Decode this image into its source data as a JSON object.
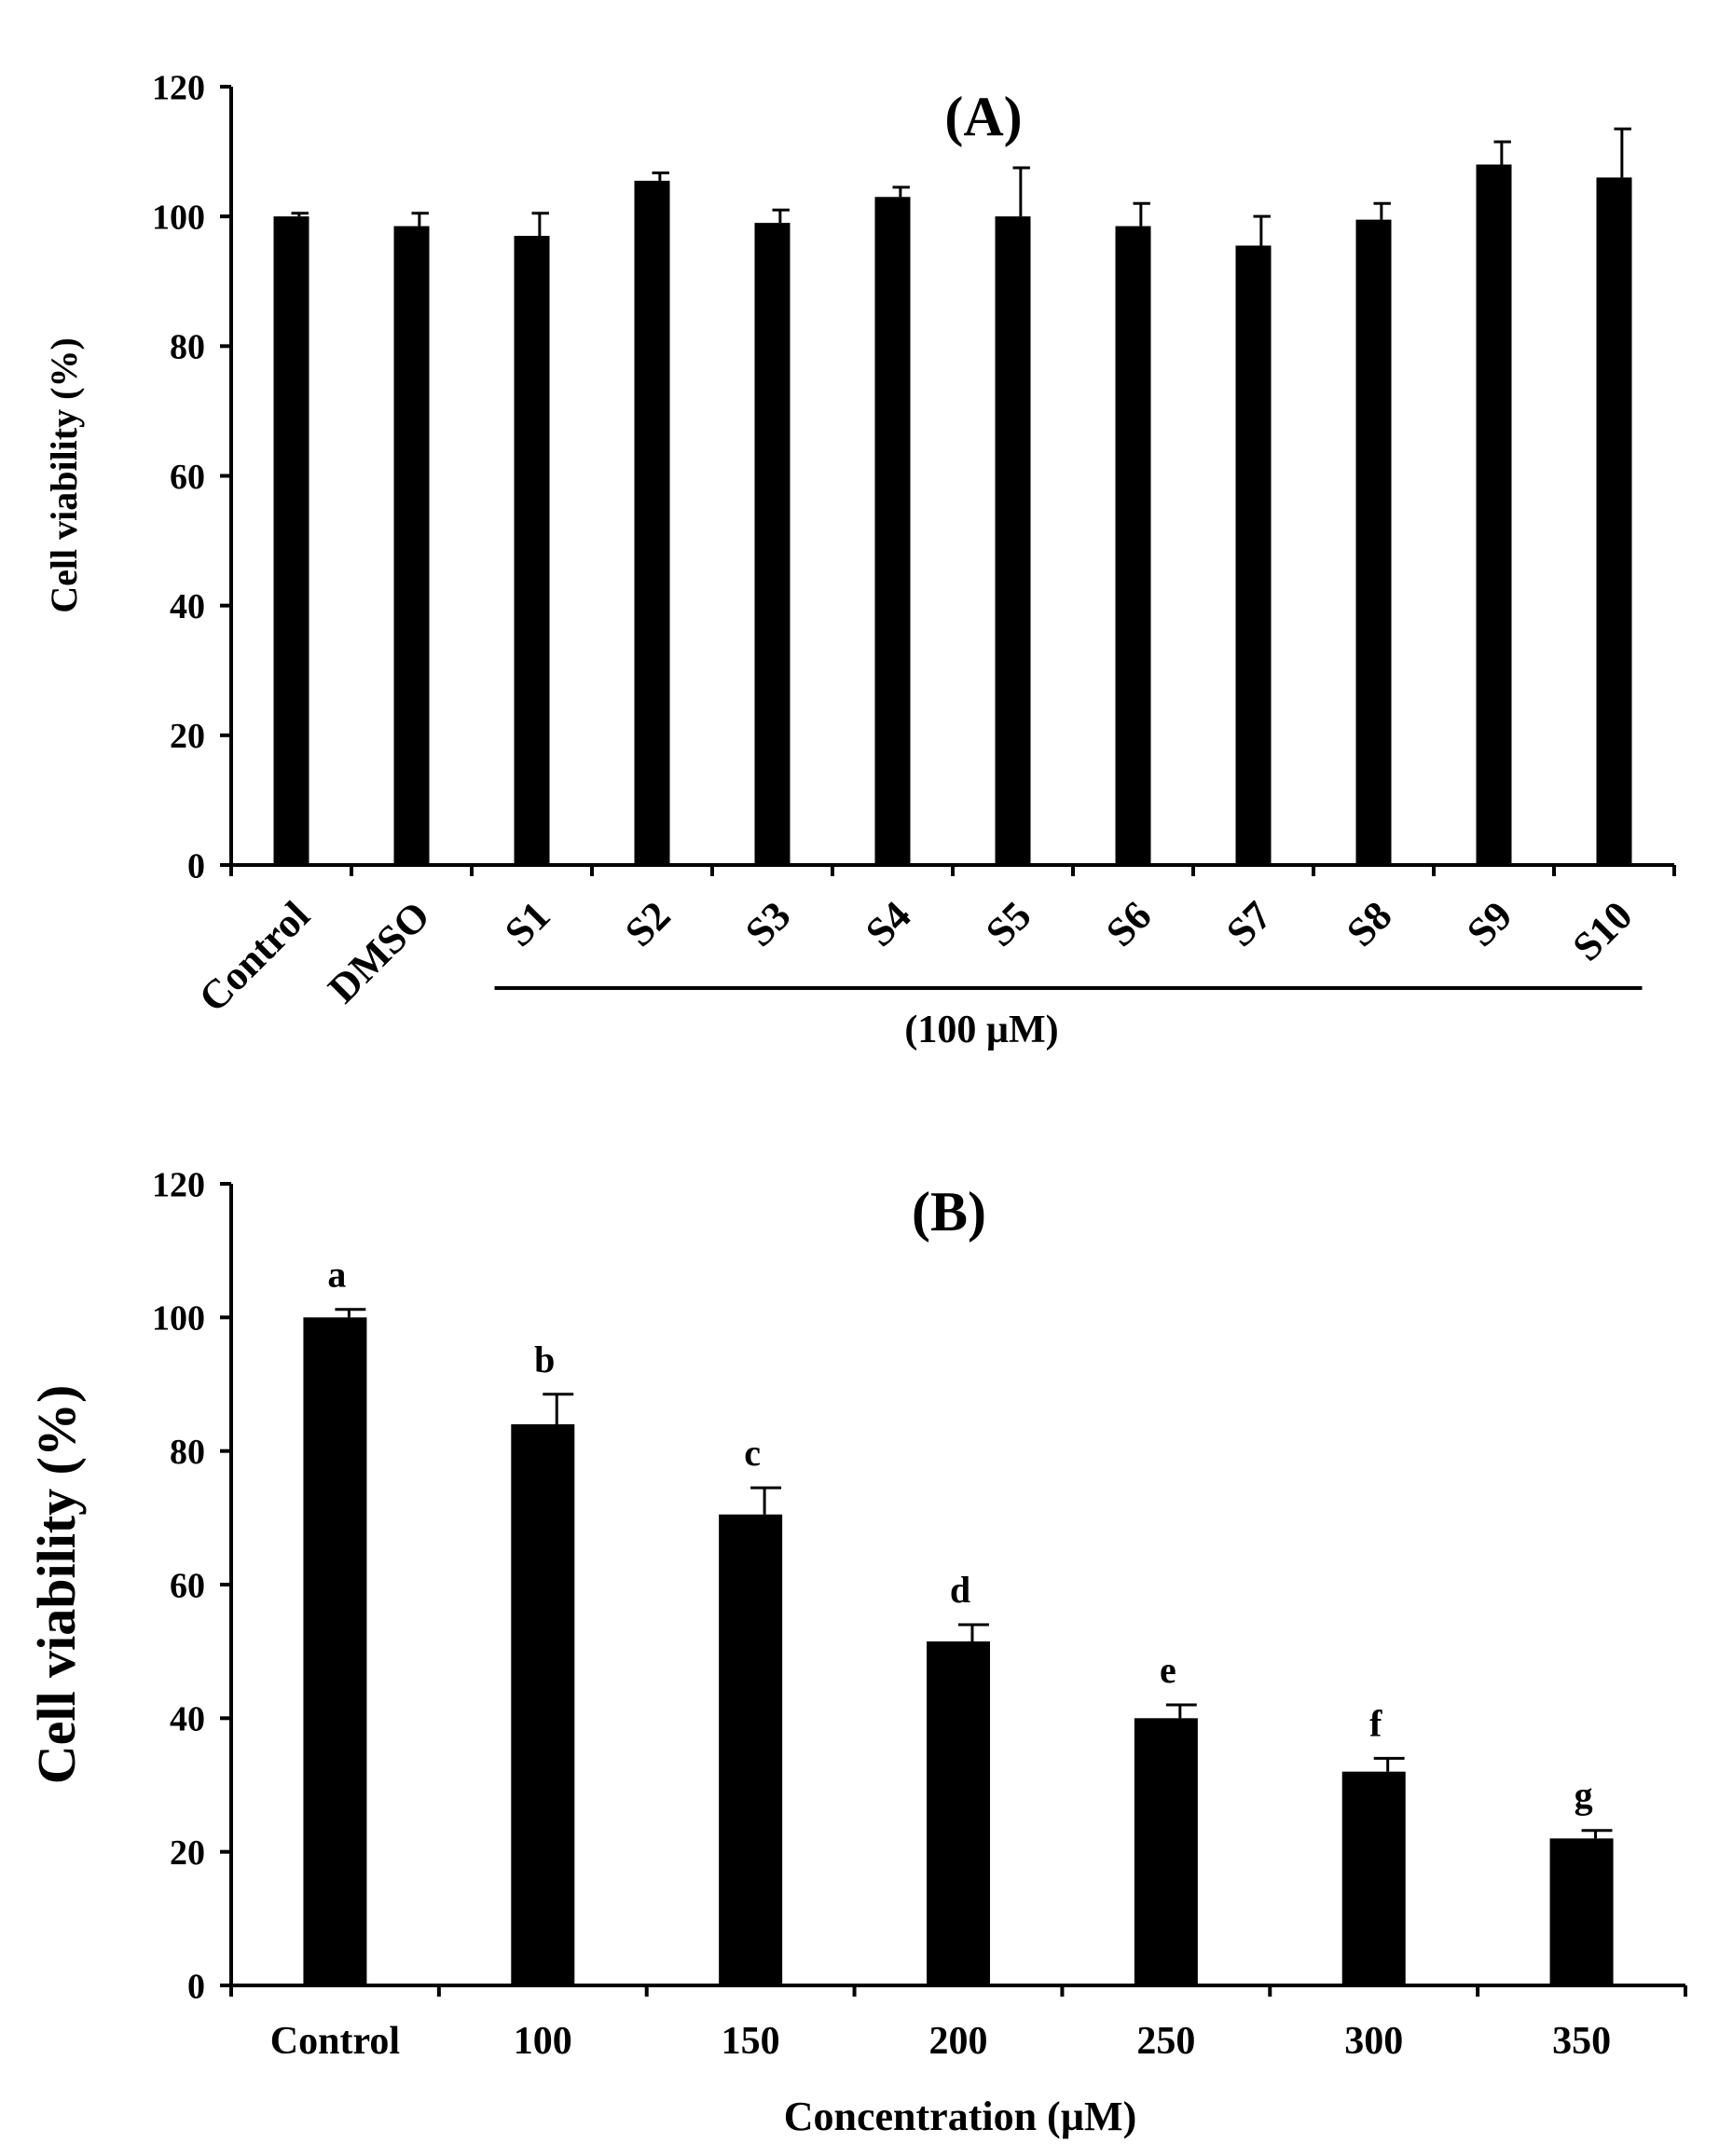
{
  "chart_data": [
    {
      "type": "bar",
      "title": "(A)",
      "xlabel": "",
      "ylabel": "Cell viability (%)",
      "ylim": [
        0,
        120
      ],
      "yticks": [
        "0",
        "20",
        "40",
        "60",
        "80",
        "100",
        "120"
      ],
      "categories": [
        "Control",
        "DMSO",
        "S1",
        "S2",
        "S3",
        "S4",
        "S5",
        "S6",
        "S7",
        "S8",
        "S9",
        "S10"
      ],
      "values": [
        100,
        98.5,
        97,
        105.5,
        99,
        103,
        100,
        98.5,
        95.5,
        99.5,
        108,
        106
      ],
      "errors": [
        0.5,
        2,
        3.5,
        1.2,
        2,
        1.5,
        7.5,
        3.5,
        4.5,
        2.5,
        3.5,
        7.5
      ],
      "group_label": "(100 µM)",
      "color": "#000000"
    },
    {
      "type": "bar",
      "title": "(B)",
      "xlabel": "Concentration (µM)",
      "ylabel": "Cell viability (%)",
      "ylim": [
        0,
        120
      ],
      "yticks": [
        "0",
        "20",
        "40",
        "60",
        "80",
        "100",
        "120"
      ],
      "categories": [
        "Control",
        "100",
        "150",
        "200",
        "250",
        "300",
        "350"
      ],
      "values": [
        100,
        84,
        70.5,
        51.5,
        40,
        32,
        22
      ],
      "errors": [
        1.2,
        4.5,
        4,
        2.5,
        2,
        2,
        1.2
      ],
      "letters": [
        "a",
        "b",
        "c",
        "d",
        "e",
        "f",
        "g"
      ],
      "color": "#000000"
    }
  ]
}
